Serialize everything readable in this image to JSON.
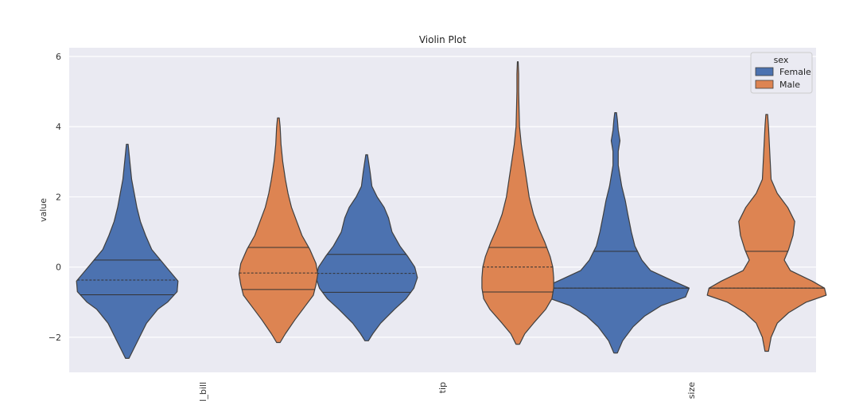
{
  "colors": {
    "background": "#ffffff",
    "plot_area": "#eaeaf2",
    "grid": "#ffffff",
    "female": "#4c72b0",
    "male": "#dd8452",
    "outline": "#3f3f3f"
  },
  "chart_data": {
    "type": "violin",
    "title": "Violin Plot",
    "xlabel": "",
    "ylabel": "value",
    "categories": [
      "total_bill",
      "tip",
      "size"
    ],
    "yticks": [
      -2,
      0,
      2,
      4,
      6
    ],
    "ytick_labels": [
      "−2",
      "0",
      "2",
      "4",
      "6"
    ],
    "ylim": [
      -3.0,
      6.25
    ],
    "grid": true,
    "legend": {
      "title": "sex",
      "placement": "top-right",
      "entries": [
        "Female",
        "Male"
      ]
    },
    "series": [
      {
        "name": "Female",
        "violins": [
          {
            "category": "total_bill",
            "profile": [
              [
                -2.6,
                2
              ],
              [
                -2.3,
                8
              ],
              [
                -2.0,
                14
              ],
              [
                -1.6,
                22
              ],
              [
                -1.2,
                35
              ],
              [
                -1.0,
                46
              ],
              [
                -0.7,
                57
              ],
              [
                -0.4,
                58
              ],
              [
                -0.1,
                48
              ],
              [
                0.2,
                38
              ],
              [
                0.5,
                28
              ],
              [
                0.9,
                21
              ],
              [
                1.3,
                15
              ],
              [
                1.7,
                11
              ],
              [
                2.1,
                8
              ],
              [
                2.5,
                5
              ],
              [
                3.0,
                3
              ],
              [
                3.5,
                1
              ]
            ],
            "quartiles": [
              -0.79,
              -0.37,
              0.2
            ]
          },
          {
            "category": "tip",
            "profile": [
              [
                -2.1,
                2
              ],
              [
                -1.9,
                7
              ],
              [
                -1.6,
                16
              ],
              [
                -1.2,
                32
              ],
              [
                -0.9,
                45
              ],
              [
                -0.6,
                54
              ],
              [
                -0.3,
                58
              ],
              [
                0.0,
                55
              ],
              [
                0.3,
                47
              ],
              [
                0.6,
                38
              ],
              [
                1.0,
                29
              ],
              [
                1.4,
                25
              ],
              [
                1.7,
                20
              ],
              [
                2.0,
                12
              ],
              [
                2.3,
                6
              ],
              [
                2.7,
                4
              ],
              [
                3.2,
                1
              ]
            ],
            "quartiles": [
              -0.72,
              -0.18,
              0.36
            ]
          },
          {
            "category": "size",
            "profile": [
              [
                -2.45,
                2
              ],
              [
                -2.1,
                8
              ],
              [
                -1.7,
                20
              ],
              [
                -1.4,
                33
              ],
              [
                -1.1,
                52
              ],
              [
                -0.85,
                80
              ],
              [
                -0.6,
                84
              ],
              [
                -0.4,
                66
              ],
              [
                -0.1,
                40
              ],
              [
                0.2,
                30
              ],
              [
                0.6,
                22
              ],
              [
                1.0,
                18
              ],
              [
                1.5,
                14
              ],
              [
                1.9,
                11
              ],
              [
                2.3,
                7
              ],
              [
                2.6,
                5
              ],
              [
                2.9,
                3
              ],
              [
                3.3,
                3
              ],
              [
                3.6,
                5
              ],
              [
                3.9,
                3
              ],
              [
                4.2,
                2
              ],
              [
                4.4,
                1
              ]
            ],
            "quartiles": [
              -0.6,
              -0.6,
              0.45
            ]
          }
        ]
      },
      {
        "name": "Male",
        "violins": [
          {
            "category": "total_bill",
            "profile": [
              [
                -2.15,
                2
              ],
              [
                -1.9,
                8
              ],
              [
                -1.5,
                19
              ],
              [
                -1.1,
                31
              ],
              [
                -0.8,
                40
              ],
              [
                -0.5,
                43
              ],
              [
                -0.2,
                45
              ],
              [
                0.1,
                43
              ],
              [
                0.5,
                36
              ],
              [
                0.9,
                27
              ],
              [
                1.3,
                21
              ],
              [
                1.7,
                15
              ],
              [
                2.1,
                11
              ],
              [
                2.5,
                8
              ],
              [
                3.0,
                5
              ],
              [
                3.5,
                3
              ],
              [
                4.0,
                2
              ],
              [
                4.25,
                1
              ]
            ],
            "quartiles": [
              -0.64,
              -0.17,
              0.56
            ]
          },
          {
            "category": "tip",
            "profile": [
              [
                -2.2,
                2
              ],
              [
                -1.9,
                8
              ],
              [
                -1.6,
                18
              ],
              [
                -1.2,
                32
              ],
              [
                -0.9,
                39
              ],
              [
                -0.6,
                41
              ],
              [
                -0.3,
                41
              ],
              [
                0.0,
                40
              ],
              [
                0.3,
                37
              ],
              [
                0.7,
                31
              ],
              [
                1.1,
                24
              ],
              [
                1.5,
                18
              ],
              [
                2.0,
                13
              ],
              [
                2.5,
                10
              ],
              [
                3.0,
                7
              ],
              [
                3.5,
                4
              ],
              [
                4.0,
                2
              ],
              [
                4.5,
                1.5
              ],
              [
                5.0,
                1
              ],
              [
                5.5,
                1
              ],
              [
                5.85,
                0.5
              ]
            ],
            "quartiles": [
              -0.71,
              0.0,
              0.56
            ]
          },
          {
            "category": "size",
            "profile": [
              [
                -2.4,
                2
              ],
              [
                -2.0,
                5
              ],
              [
                -1.6,
                12
              ],
              [
                -1.3,
                25
              ],
              [
                -1.0,
                45
              ],
              [
                -0.8,
                68
              ],
              [
                -0.6,
                66
              ],
              [
                -0.4,
                52
              ],
              [
                -0.1,
                27
              ],
              [
                0.2,
                20
              ],
              [
                0.5,
                25
              ],
              [
                0.9,
                30
              ],
              [
                1.3,
                32
              ],
              [
                1.7,
                24
              ],
              [
                2.1,
                12
              ],
              [
                2.5,
                5
              ],
              [
                3.0,
                4
              ],
              [
                3.5,
                3
              ],
              [
                4.0,
                2
              ],
              [
                4.35,
                1
              ]
            ],
            "quartiles": [
              -0.6,
              -0.6,
              0.45
            ]
          }
        ]
      }
    ]
  }
}
